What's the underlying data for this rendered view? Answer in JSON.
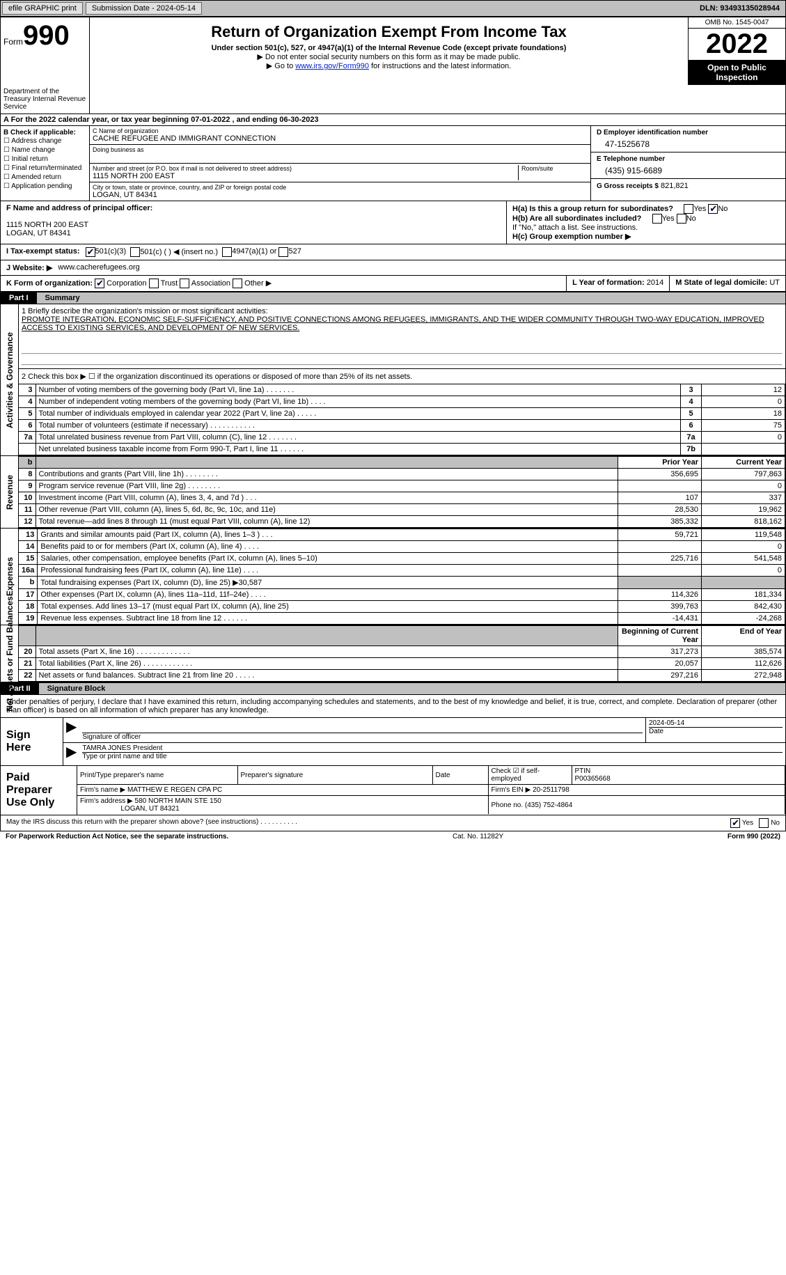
{
  "topbar": {
    "efile": "efile GRAPHIC print",
    "submission": "Submission Date - 2024-05-14",
    "dln": "DLN: 93493135028944"
  },
  "header": {
    "form": "Form",
    "num": "990",
    "title": "Return of Organization Exempt From Income Tax",
    "sub1": "Under section 501(c), 527, or 4947(a)(1) of the Internal Revenue Code (except private foundations)",
    "sub2": "▶ Do not enter social security numbers on this form as it may be made public.",
    "sub3_pre": "▶ Go to ",
    "sub3_link": "www.irs.gov/Form990",
    "sub3_post": " for instructions and the latest information.",
    "dept": "Department of the Treasury Internal Revenue Service",
    "omb": "OMB No. 1545-0047",
    "year": "2022",
    "inspect": "Open to Public Inspection"
  },
  "rowA": "A For the 2022 calendar year, or tax year beginning 07-01-2022    , and ending 06-30-2023",
  "colB": {
    "lbl": "B Check if applicable:",
    "c1": "Address change",
    "c2": "Name change",
    "c3": "Initial return",
    "c4": "Final return/terminated",
    "c5": "Amended return",
    "c6": "Application pending"
  },
  "colC": {
    "name_lbl": "C Name of organization",
    "name": "CACHE REFUGEE AND IMMIGRANT CONNECTION",
    "dba": "Doing business as",
    "addr_lbl": "Number and street (or P.O. box if mail is not delivered to street address)",
    "addr": "1115 NORTH 200 EAST",
    "room": "Room/suite",
    "city_lbl": "City or town, state or province, country, and ZIP or foreign postal code",
    "city": "LOGAN, UT  84341"
  },
  "colD": {
    "ein_lbl": "D Employer identification number",
    "ein": "47-1525678",
    "tel_lbl": "E Telephone number",
    "tel": "(435) 915-6689",
    "gross_lbl": "G Gross receipts $",
    "gross": "821,821"
  },
  "rowF": {
    "lbl": "F Name and address of principal officer:",
    "addr1": "1115 NORTH 200 EAST",
    "addr2": "LOGAN, UT  84341"
  },
  "rowH": {
    "ha": "H(a)  Is this a group return for subordinates?",
    "hb": "H(b)  Are all subordinates included?",
    "hb_note": "If \"No,\" attach a list. See instructions.",
    "hc": "H(c)  Group exemption number ▶",
    "yes": "Yes",
    "no": "No"
  },
  "rowI": {
    "lbl": "I  Tax-exempt status:",
    "o1": "501(c)(3)",
    "o2": "501(c) (  ) ◀ (insert no.)",
    "o3": "4947(a)(1) or",
    "o4": "527"
  },
  "rowJ": {
    "lbl": "J  Website: ▶",
    "val": "www.cacherefugees.org"
  },
  "rowK": {
    "lbl": "K Form of organization:",
    "o1": "Corporation",
    "o2": "Trust",
    "o3": "Association",
    "o4": "Other ▶"
  },
  "rowL": {
    "lbl": "L Year of formation:",
    "val": "2014"
  },
  "rowM": {
    "lbl": "M State of legal domicile:",
    "val": "UT"
  },
  "part1": {
    "num": "Part I",
    "title": "Summary"
  },
  "summary": {
    "m1": "1   Briefly describe the organization's mission or most significant activities:",
    "mission": "PROMOTE INTEGRATION, ECONOMIC SELF-SUFFICIENCY, AND POSITIVE CONNECTIONS AMONG REFUGEES, IMMIGRANTS, AND THE WIDER COMMUNITY THROUGH TWO-WAY EDUCATION, IMPROVED ACCESS TO EXISTING SERVICES, AND DEVELOPMENT OF NEW SERVICES.",
    "l2": "2   Check this box ▶ ☐ if the organization discontinued its operations or disposed of more than 25% of its net assets.",
    "rows": [
      {
        "n": "3",
        "t": "Number of voting members of the governing body (Part VI, line 1a)   .    .    .    .    .    .    .",
        "b": "3",
        "v": "12"
      },
      {
        "n": "4",
        "t": "Number of independent voting members of the governing body (Part VI, line 1b)   .    .    .    .",
        "b": "4",
        "v": "0"
      },
      {
        "n": "5",
        "t": "Total number of individuals employed in calendar year 2022 (Part V, line 2a)    .    .    .    .    .",
        "b": "5",
        "v": "18"
      },
      {
        "n": "6",
        "t": "Total number of volunteers (estimate if necessary)    .    .    .    .    .    .    .    .    .    .    .",
        "b": "6",
        "v": "75"
      },
      {
        "n": "7a",
        "t": "Total unrelated business revenue from Part VIII, column (C), line 12   .    .    .    .    .    .    .",
        "b": "7a",
        "v": "0"
      },
      {
        "n": "",
        "t": "Net unrelated business taxable income from Form 990-T, Part I, line 11   .    .    .    .    .    .",
        "b": "7b",
        "v": ""
      }
    ],
    "prior": "Prior Year",
    "current": "Current Year",
    "revenue": [
      {
        "n": "8",
        "t": "Contributions and grants (Part VIII, line 1h)   .    .    .    .    .    .    .    .",
        "p": "356,695",
        "c": "797,863"
      },
      {
        "n": "9",
        "t": "Program service revenue (Part VIII, line 2g)    .    .    .    .    .    .    .    .",
        "p": "",
        "c": "0"
      },
      {
        "n": "10",
        "t": "Investment income (Part VIII, column (A), lines 3, 4, and 7d )    .    .    .",
        "p": "107",
        "c": "337"
      },
      {
        "n": "11",
        "t": "Other revenue (Part VIII, column (A), lines 5, 6d, 8c, 9c, 10c, and 11e)",
        "p": "28,530",
        "c": "19,962"
      },
      {
        "n": "12",
        "t": "Total revenue—add lines 8 through 11 (must equal Part VIII, column (A), line 12)",
        "p": "385,332",
        "c": "818,162"
      }
    ],
    "expenses": [
      {
        "n": "13",
        "t": "Grants and similar amounts paid (Part IX, column (A), lines 1–3 )   .    .    .",
        "p": "59,721",
        "c": "119,548"
      },
      {
        "n": "14",
        "t": "Benefits paid to or for members (Part IX, column (A), line 4)   .    .    .    .",
        "p": "",
        "c": "0"
      },
      {
        "n": "15",
        "t": "Salaries, other compensation, employee benefits (Part IX, column (A), lines 5–10)",
        "p": "225,716",
        "c": "541,548"
      },
      {
        "n": "16a",
        "t": "Professional fundraising fees (Part IX, column (A), line 11e)   .    .    .    .",
        "p": "",
        "c": "0"
      },
      {
        "n": "b",
        "t": "Total fundraising expenses (Part IX, column (D), line 25) ▶30,587",
        "p": "shade",
        "c": "shade"
      },
      {
        "n": "17",
        "t": "Other expenses (Part IX, column (A), lines 11a–11d, 11f–24e)   .    .    .    .",
        "p": "114,326",
        "c": "181,334"
      },
      {
        "n": "18",
        "t": "Total expenses. Add lines 13–17 (must equal Part IX, column (A), line 25)",
        "p": "399,763",
        "c": "842,430"
      },
      {
        "n": "19",
        "t": "Revenue less expenses. Subtract line 18 from line 12   .    .    .    .    .    .",
        "p": "-14,431",
        "c": "-24,268"
      }
    ],
    "begin": "Beginning of Current Year",
    "end": "End of Year",
    "net": [
      {
        "n": "20",
        "t": "Total assets (Part X, line 16)   .    .    .    .    .    .    .    .    .    .    .    .    .",
        "p": "317,273",
        "c": "385,574"
      },
      {
        "n": "21",
        "t": "Total liabilities (Part X, line 26)   .    .    .    .    .    .    .    .    .    .    .    .",
        "p": "20,057",
        "c": "112,626"
      },
      {
        "n": "22",
        "t": "Net assets or fund balances. Subtract line 21 from line 20   .    .    .    .    .",
        "p": "297,216",
        "c": "272,948"
      }
    ]
  },
  "sides": {
    "act": "Activities & Governance",
    "rev": "Revenue",
    "exp": "Expenses",
    "net": "Net Assets or Fund Balances"
  },
  "part2": {
    "num": "Part II",
    "title": "Signature Block"
  },
  "sig": {
    "decl": "Under penalties of perjury, I declare that I have examined this return, including accompanying schedules and statements, and to the best of my knowledge and belief, it is true, correct, and complete. Declaration of preparer (other than officer) is based on all information of which preparer has any knowledge.",
    "sign": "Sign Here",
    "sig_officer": "Signature of officer",
    "date": "2024-05-14",
    "date_lbl": "Date",
    "name": "TAMRA JONES  President",
    "name_lbl": "Type or print name and title",
    "paid": "Paid Preparer Use Only",
    "prep_name_lbl": "Print/Type preparer's name",
    "prep_sig_lbl": "Preparer's signature",
    "check_lbl": "Check ☑ if self-employed",
    "ptin_lbl": "PTIN",
    "ptin": "P00365668",
    "firm_lbl": "Firm's name    ▶",
    "firm": "MATTHEW E REGEN CPA PC",
    "ein_lbl": "Firm's EIN ▶",
    "ein": "20-2511798",
    "addr_lbl": "Firm's address ▶",
    "addr1": "580 NORTH MAIN STE 150",
    "addr2": "LOGAN, UT  84321",
    "phone_lbl": "Phone no.",
    "phone": "(435) 752-4864"
  },
  "footer": {
    "q": "May the IRS discuss this return with the preparer shown above? (see instructions)   .    .    .    .    .    .    .    .    .    .",
    "yes": "Yes",
    "no": "No",
    "pra": "For Paperwork Reduction Act Notice, see the separate instructions.",
    "cat": "Cat. No. 11282Y",
    "form": "Form 990 (2022)"
  }
}
